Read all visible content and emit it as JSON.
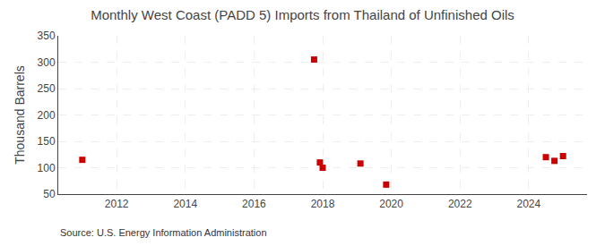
{
  "chart_data": {
    "type": "scatter",
    "title": "Monthly West Coast (PADD 5) Imports from Thailand of Unfinished Oils",
    "y_label": "Thousand Barrels",
    "annotations": [
      "Source: U.S. Energy Information Administration"
    ],
    "x": [
      2011.0,
      2017.75,
      2017.92,
      2018.0,
      2019.1,
      2019.85,
      2024.5,
      2024.75,
      2025.0
    ],
    "values": [
      115,
      305,
      110,
      100,
      108,
      68,
      120,
      113,
      122
    ],
    "color": "#cc0000",
    "marker": "square",
    "xlim": [
      2010.3,
      2025.7
    ],
    "ylim": [
      50,
      350
    ],
    "xticks": [
      2012,
      2014,
      2016,
      2018,
      2020,
      2022,
      2024
    ],
    "yticks": [
      50,
      100,
      150,
      200,
      250,
      300,
      350
    ],
    "grid": true
  }
}
